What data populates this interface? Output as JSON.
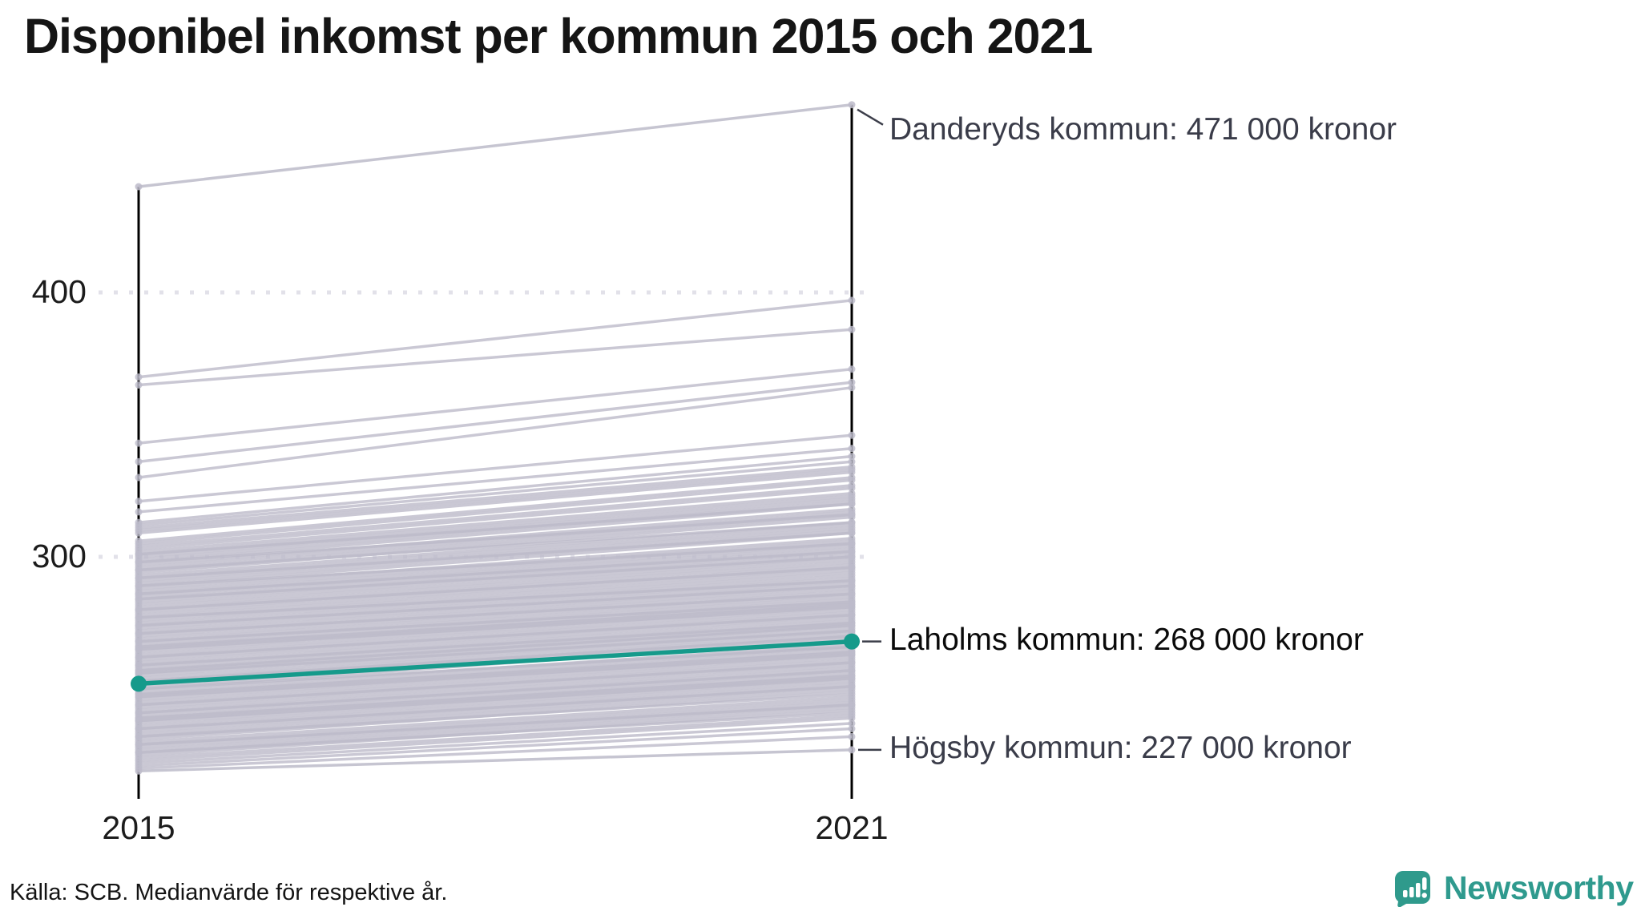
{
  "title": "Disponibel inkomst per kommun 2015 och 2021",
  "source": "Källa: SCB. Medianvärde för respektive år.",
  "brand": {
    "name": "Newsworthy",
    "icon": "bar-chart-speech-bubble-icon",
    "color": "#2f9a8e"
  },
  "chart_data": {
    "type": "line",
    "subtype": "slope-chart",
    "title": "Disponibel inkomst per kommun 2015 och 2021",
    "x_categories": [
      "2015",
      "2021"
    ],
    "y_ticks": [
      300,
      400
    ],
    "y_tick_labels": [
      "300",
      "400"
    ],
    "ylim": [
      210,
      480
    ],
    "unit": "tusen kronor (1000 kronor)",
    "grid": "dotted horizontal gridlines at 300 and 400",
    "legend_position": "none",
    "colors": {
      "highlight": "#169a8b",
      "background_line": "#bdbbca",
      "axis": "#000000",
      "gridline": "#e2e1e9",
      "connector": "#3c3e4a"
    },
    "annotated_series": [
      {
        "name": "Danderyds kommun",
        "values": [
          440,
          471
        ],
        "label": "Danderyds kommun: 471 000 kronor",
        "highlighted": false
      },
      {
        "name": "Laholms kommun",
        "values": [
          252,
          268
        ],
        "label": "Laholms kommun: 268 000 kronor",
        "highlighted": true
      },
      {
        "name": "Högsby kommun",
        "values": [
          219,
          227
        ],
        "label": "Högsby kommun: 227 000 kronor",
        "highlighted": false
      }
    ],
    "background_series": [
      [
        368,
        397
      ],
      [
        365,
        386
      ],
      [
        343,
        371
      ],
      [
        336,
        366
      ],
      [
        330,
        364
      ],
      [
        321,
        346
      ],
      [
        317,
        341
      ],
      [
        313,
        338
      ],
      [
        312,
        336
      ],
      [
        311,
        334
      ],
      [
        310,
        333
      ],
      [
        309,
        332
      ],
      [
        306,
        330
      ],
      [
        305,
        329
      ],
      [
        304,
        327
      ],
      [
        303,
        326
      ],
      [
        302,
        324
      ],
      [
        301,
        323
      ],
      [
        300,
        322
      ],
      [
        299,
        321
      ],
      [
        298,
        320
      ],
      [
        297,
        318
      ],
      [
        296,
        317
      ],
      [
        295,
        316
      ],
      [
        294,
        315
      ],
      [
        293,
        313
      ],
      [
        292,
        312
      ],
      [
        291,
        311
      ],
      [
        290,
        310
      ],
      [
        289,
        309
      ],
      [
        288,
        307
      ],
      [
        287,
        306
      ],
      [
        286,
        305
      ],
      [
        285,
        304
      ],
      [
        284,
        303
      ],
      [
        283,
        302
      ],
      [
        282,
        301
      ],
      [
        281,
        300
      ],
      [
        280,
        299
      ],
      [
        279,
        298
      ],
      [
        278,
        297
      ],
      [
        277,
        296
      ],
      [
        276,
        295
      ],
      [
        275,
        294
      ],
      [
        274,
        293
      ],
      [
        273,
        292
      ],
      [
        272,
        291
      ],
      [
        271,
        290
      ],
      [
        270,
        289
      ],
      [
        269,
        288
      ],
      [
        268,
        287
      ],
      [
        267,
        286
      ],
      [
        266,
        285
      ],
      [
        265,
        284
      ],
      [
        264,
        283
      ],
      [
        263,
        282
      ],
      [
        262,
        281
      ],
      [
        261,
        280
      ],
      [
        260,
        279
      ],
      [
        259,
        278
      ],
      [
        258,
        277
      ],
      [
        257,
        276
      ],
      [
        256,
        275
      ],
      [
        255,
        274
      ],
      [
        254,
        273
      ],
      [
        253,
        272
      ],
      [
        252,
        271
      ],
      [
        251,
        270
      ],
      [
        250,
        269
      ],
      [
        249,
        267
      ],
      [
        248,
        266
      ],
      [
        247,
        265
      ],
      [
        246,
        264
      ],
      [
        245,
        263
      ],
      [
        244,
        262
      ],
      [
        243,
        261
      ],
      [
        242,
        260
      ],
      [
        241,
        259
      ],
      [
        240,
        258
      ],
      [
        239,
        257
      ],
      [
        238,
        256
      ],
      [
        237,
        255
      ],
      [
        236,
        254
      ],
      [
        235,
        253
      ],
      [
        234,
        252
      ],
      [
        233,
        251
      ],
      [
        232,
        250
      ],
      [
        231,
        249
      ],
      [
        230,
        247
      ],
      [
        229,
        246
      ],
      [
        228,
        245
      ],
      [
        227,
        244
      ],
      [
        226,
        243
      ],
      [
        225,
        242
      ],
      [
        224,
        240
      ],
      [
        223,
        239
      ],
      [
        222,
        237
      ],
      [
        221,
        235
      ],
      [
        220,
        232
      ],
      [
        284,
        300
      ],
      [
        280,
        296
      ],
      [
        277,
        291
      ],
      [
        274,
        289
      ],
      [
        271,
        286
      ],
      [
        268,
        283
      ],
      [
        265,
        281
      ],
      [
        262,
        278
      ],
      [
        259,
        275
      ],
      [
        256,
        272
      ],
      [
        253,
        270
      ],
      [
        250,
        266
      ],
      [
        247,
        263
      ],
      [
        244,
        260
      ],
      [
        241,
        257
      ],
      [
        238,
        254
      ],
      [
        235,
        251
      ],
      [
        232,
        248
      ],
      [
        229,
        244
      ],
      [
        226,
        241
      ],
      [
        286,
        302
      ],
      [
        289,
        305
      ],
      [
        292,
        309
      ],
      [
        295,
        313
      ],
      [
        298,
        316
      ],
      [
        301,
        320
      ],
      [
        266,
        282
      ],
      [
        257,
        274
      ],
      [
        248,
        264
      ],
      [
        239,
        255
      ]
    ]
  }
}
